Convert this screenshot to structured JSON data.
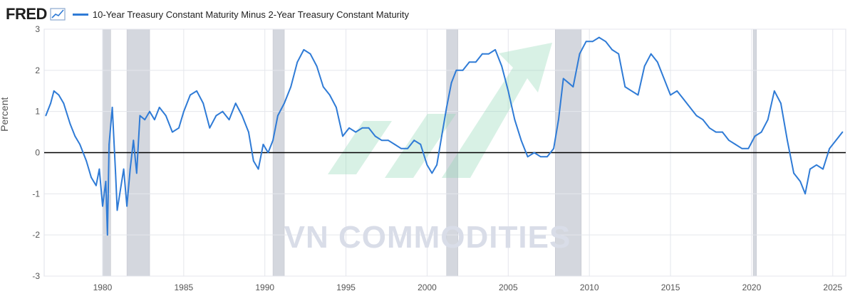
{
  "header": {
    "logo": "FRED",
    "series_title": "10-Year Treasury Constant Maturity Minus 2-Year Treasury Constant Maturity"
  },
  "watermark": "VN COMMODITIES",
  "colors": {
    "series": "#2f7bd6",
    "recession": "#d4d7de",
    "plot_bg": "#eceef3",
    "zero_line": "#000000",
    "watermark_green": "#8fd6b4"
  },
  "chart_data": {
    "type": "line",
    "title": "",
    "ylabel": "Percent",
    "xlabel": "",
    "xlim": [
      1976.4,
      2025.8
    ],
    "ylim": [
      -3,
      3
    ],
    "x_ticks": [
      1980,
      1985,
      1990,
      1995,
      2000,
      2005,
      2010,
      2015,
      2020,
      2025
    ],
    "y_ticks": [
      -3,
      -2,
      -1,
      0,
      1,
      2,
      3
    ],
    "grid": true,
    "legend": "top-left",
    "recessions": [
      [
        1980.0,
        1980.5
      ],
      [
        1981.5,
        1982.9
      ],
      [
        1990.5,
        1991.2
      ],
      [
        2001.2,
        2001.9
      ],
      [
        2007.9,
        2009.5
      ],
      [
        2020.1,
        2020.3
      ]
    ],
    "series": [
      {
        "name": "10-Year Treasury Constant Maturity Minus 2-Year Treasury Constant Maturity",
        "x": [
          1976.5,
          1976.8,
          1977.0,
          1977.3,
          1977.6,
          1978.0,
          1978.3,
          1978.6,
          1979.0,
          1979.3,
          1979.6,
          1979.8,
          1980.0,
          1980.2,
          1980.3,
          1980.4,
          1980.6,
          1980.8,
          1980.9,
          1981.1,
          1981.3,
          1981.5,
          1981.7,
          1981.9,
          1982.1,
          1982.3,
          1982.6,
          1982.9,
          1983.2,
          1983.5,
          1983.9,
          1984.3,
          1984.7,
          1985.0,
          1985.4,
          1985.8,
          1986.2,
          1986.6,
          1987.0,
          1987.4,
          1987.8,
          1988.2,
          1988.6,
          1989.0,
          1989.3,
          1989.6,
          1989.9,
          1990.2,
          1990.5,
          1990.8,
          1991.2,
          1991.6,
          1992.0,
          1992.4,
          1992.8,
          1993.2,
          1993.6,
          1994.0,
          1994.4,
          1994.8,
          1995.2,
          1995.6,
          1996.0,
          1996.4,
          1996.8,
          1997.2,
          1997.6,
          1998.0,
          1998.4,
          1998.8,
          1999.2,
          1999.6,
          2000.0,
          2000.3,
          2000.6,
          2000.9,
          2001.2,
          2001.5,
          2001.8,
          2002.2,
          2002.6,
          2003.0,
          2003.4,
          2003.8,
          2004.2,
          2004.6,
          2005.0,
          2005.4,
          2005.8,
          2006.2,
          2006.6,
          2007.0,
          2007.4,
          2007.8,
          2008.1,
          2008.4,
          2008.7,
          2009.0,
          2009.4,
          2009.8,
          2010.2,
          2010.6,
          2011.0,
          2011.4,
          2011.8,
          2012.2,
          2012.6,
          2013.0,
          2013.4,
          2013.8,
          2014.2,
          2014.6,
          2015.0,
          2015.4,
          2015.8,
          2016.2,
          2016.6,
          2017.0,
          2017.4,
          2017.8,
          2018.2,
          2018.6,
          2019.0,
          2019.4,
          2019.8,
          2020.2,
          2020.6,
          2021.0,
          2021.4,
          2021.8,
          2022.2,
          2022.6,
          2023.0,
          2023.3,
          2023.6,
          2024.0,
          2024.4,
          2024.8,
          2025.2,
          2025.6
        ],
        "values": [
          0.9,
          1.2,
          1.5,
          1.4,
          1.2,
          0.7,
          0.4,
          0.2,
          -0.2,
          -0.6,
          -0.8,
          -0.4,
          -1.3,
          -0.7,
          -2.0,
          0.2,
          1.1,
          -0.5,
          -1.4,
          -0.9,
          -0.4,
          -1.3,
          -0.4,
          0.3,
          -0.5,
          0.9,
          0.8,
          1.0,
          0.8,
          1.1,
          0.9,
          0.5,
          0.6,
          1.0,
          1.4,
          1.5,
          1.2,
          0.6,
          0.9,
          1.0,
          0.8,
          1.2,
          0.9,
          0.5,
          -0.2,
          -0.4,
          0.2,
          0.0,
          0.3,
          0.9,
          1.2,
          1.6,
          2.2,
          2.5,
          2.4,
          2.1,
          1.6,
          1.4,
          1.1,
          0.4,
          0.6,
          0.5,
          0.6,
          0.6,
          0.4,
          0.3,
          0.3,
          0.2,
          0.1,
          0.1,
          0.3,
          0.2,
          -0.3,
          -0.5,
          -0.3,
          0.4,
          1.1,
          1.7,
          2.0,
          2.0,
          2.2,
          2.2,
          2.4,
          2.4,
          2.5,
          2.1,
          1.5,
          0.8,
          0.3,
          -0.1,
          0.0,
          -0.1,
          -0.1,
          0.1,
          0.8,
          1.8,
          1.7,
          1.6,
          2.4,
          2.7,
          2.7,
          2.8,
          2.7,
          2.5,
          2.4,
          1.6,
          1.5,
          1.4,
          2.1,
          2.4,
          2.2,
          1.8,
          1.4,
          1.5,
          1.3,
          1.1,
          0.9,
          0.8,
          0.6,
          0.5,
          0.5,
          0.3,
          0.2,
          0.1,
          0.1,
          0.4,
          0.5,
          0.8,
          1.5,
          1.2,
          0.3,
          -0.5,
          -0.7,
          -1.0,
          -0.4,
          -0.3,
          -0.4,
          0.1,
          0.3,
          0.5
        ]
      }
    ]
  }
}
